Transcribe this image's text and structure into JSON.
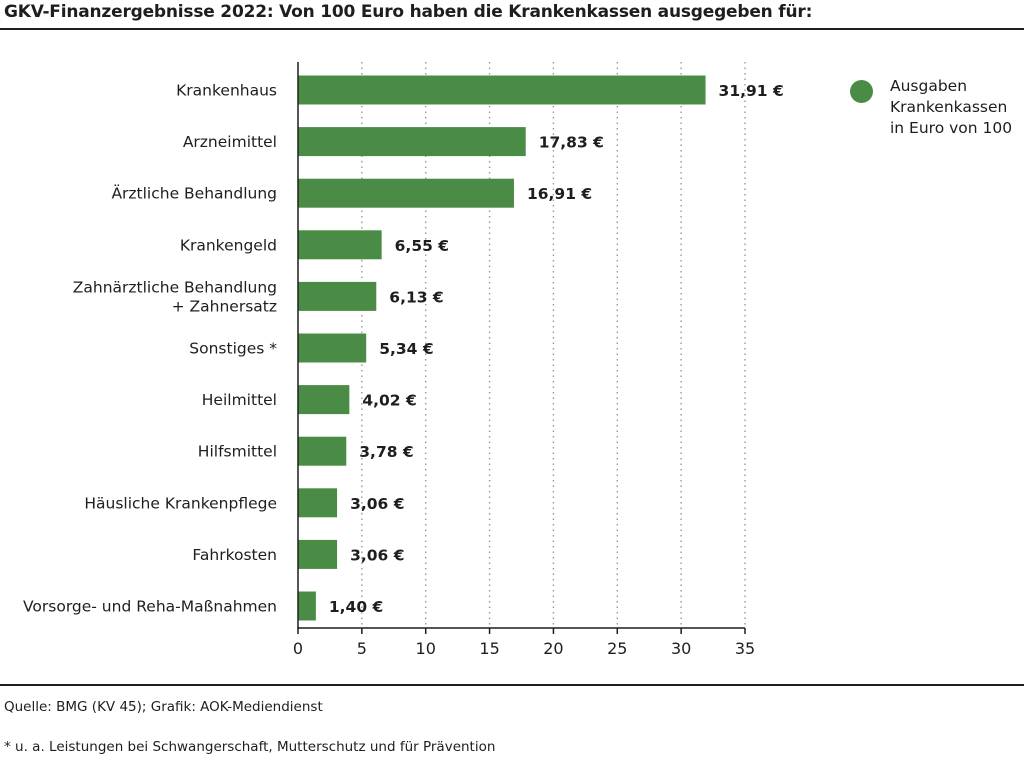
{
  "title": "GKV-Finanzergebnisse 2022: Von 100 Euro haben die Krankenkassen ausgegeben für:",
  "source": "Quelle: BMG (KV 45); Grafik: AOK-Mediendienst",
  "footnote": "* u. a. Leistungen bei Schwangerschaft, Mutterschutz und für Prävention",
  "colors": {
    "bar": "#4a8c46",
    "text": "#1e1e1e",
    "grid": "#999999"
  },
  "chart_data": {
    "type": "bar",
    "orientation": "horizontal",
    "categories": [
      "Krankenhaus",
      "Arzneimittel",
      "Ärztliche Behandlung",
      "Krankengeld",
      "Zahnärztliche Behandlung\n+ Zahnersatz",
      "Sonstiges *",
      "Heilmittel",
      "Hilfsmittel",
      "Häusliche Krankenpflege",
      "Fahrkosten",
      "Vorsorge- und Reha-Maßnahmen"
    ],
    "series": [
      {
        "name": "Ausgaben\nKrankenkassen\nin Euro von 100",
        "values": [
          31.91,
          17.83,
          16.91,
          6.55,
          6.13,
          5.34,
          4.02,
          3.78,
          3.06,
          3.06,
          1.4
        ]
      }
    ],
    "value_labels": [
      "31,91 €",
      "17,83 €",
      "16,91 €",
      "6,55 €",
      "6,13 €",
      "5,34 €",
      "4,02 €",
      "3,78 €",
      "3,06 €",
      "3,06 €",
      "1,40 €"
    ],
    "xlim": [
      0,
      35
    ],
    "xticks": [
      0,
      5,
      10,
      15,
      20,
      25,
      30,
      35
    ],
    "grid": "vertical dotted",
    "legend_position": "right"
  }
}
